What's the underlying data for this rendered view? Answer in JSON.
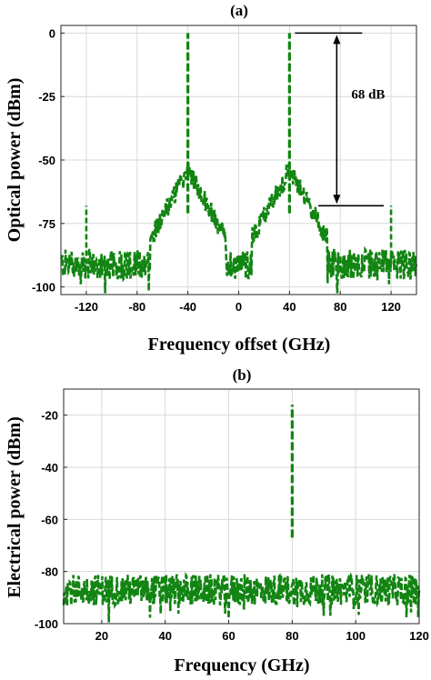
{
  "chart_data": [
    {
      "type": "line",
      "panel_label": "(a)",
      "xlabel": "Frequency offset (GHz)",
      "ylabel": "Optical power (dBm)",
      "xlim": [
        -140,
        140
      ],
      "ylim": [
        -103,
        3
      ],
      "xticks": [
        -120,
        -80,
        -40,
        0,
        40,
        80,
        120
      ],
      "yticks": [
        0,
        -25,
        -50,
        -75,
        -100
      ],
      "grid": true,
      "line_color": "#128412",
      "noise_floor": -91,
      "peaks": [
        {
          "x": -40,
          "y": 0
        },
        {
          "x": 40,
          "y": 0
        }
      ],
      "sidebands": [
        {
          "x": -120,
          "y": -68
        },
        {
          "x": 120,
          "y": -68
        }
      ],
      "annotation": {
        "text": "68 dB",
        "from": {
          "x": 40,
          "y": 0
        },
        "to": {
          "x": 120,
          "y": -68
        }
      }
    },
    {
      "type": "line",
      "panel_label": "(b)",
      "xlabel": "Frequency (GHz)",
      "ylabel": "Electrical power (dBm)",
      "xlim": [
        8,
        120
      ],
      "ylim": [
        -100,
        -10
      ],
      "xticks": [
        20,
        40,
        60,
        80,
        100,
        120
      ],
      "yticks": [
        -20,
        -40,
        -60,
        -80,
        -100
      ],
      "grid": true,
      "line_color": "#128412",
      "noise_floor": -87,
      "peaks": [
        {
          "x": 80,
          "y": -16
        }
      ]
    }
  ]
}
